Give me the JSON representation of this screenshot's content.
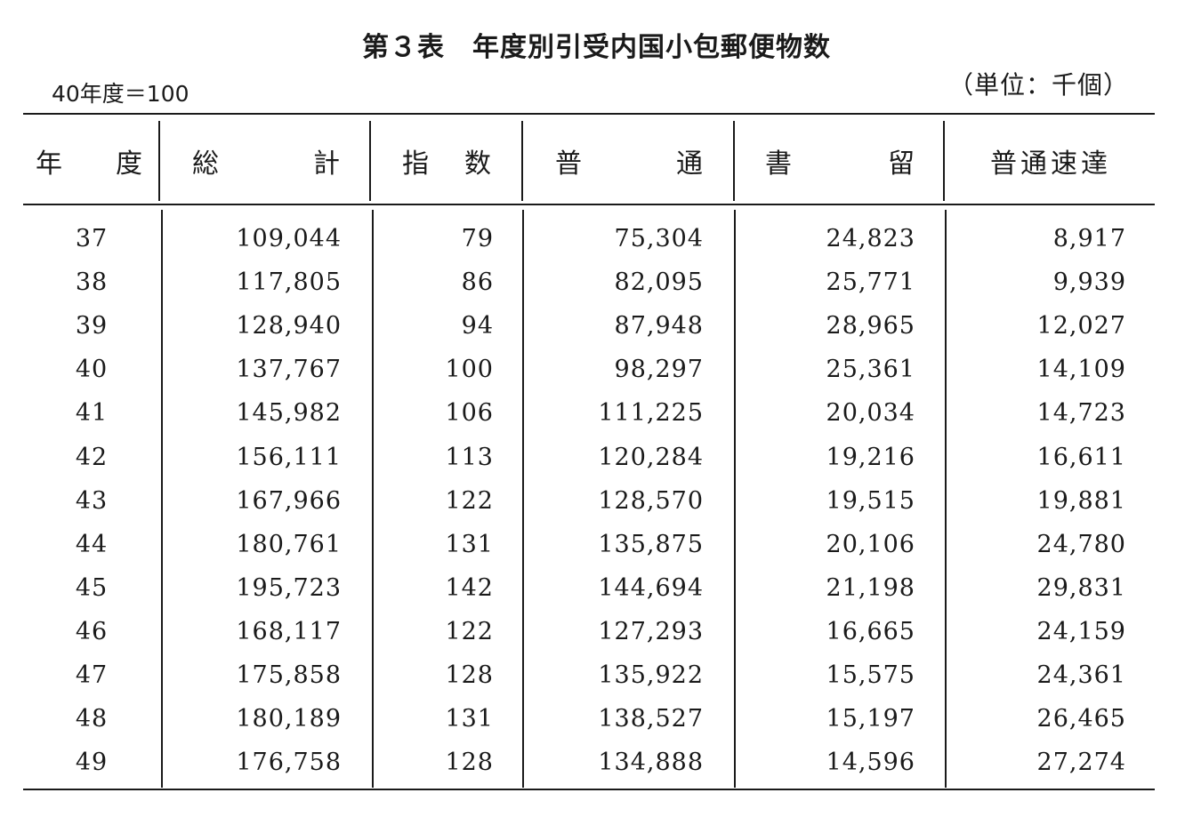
{
  "title": "第３表　年度別引受内国小包郵便物数",
  "base_note": "40年度＝100",
  "unit_note": "（単位：千個）",
  "headers": {
    "year": [
      "年",
      "度"
    ],
    "total": [
      "総",
      "計"
    ],
    "index": [
      "指",
      "数"
    ],
    "ordinary": [
      "普",
      "通"
    ],
    "registered": [
      "書",
      "留"
    ],
    "express": "普通速達"
  },
  "rows": [
    {
      "year": "37",
      "total": "109,044",
      "index": "79",
      "ordinary": "75,304",
      "registered": "24,823",
      "express": "8,917"
    },
    {
      "year": "38",
      "total": "117,805",
      "index": "86",
      "ordinary": "82,095",
      "registered": "25,771",
      "express": "9,939"
    },
    {
      "year": "39",
      "total": "128,940",
      "index": "94",
      "ordinary": "87,948",
      "registered": "28,965",
      "express": "12,027"
    },
    {
      "year": "40",
      "total": "137,767",
      "index": "100",
      "ordinary": "98,297",
      "registered": "25,361",
      "express": "14,109"
    },
    {
      "year": "41",
      "total": "145,982",
      "index": "106",
      "ordinary": "111,225",
      "registered": "20,034",
      "express": "14,723"
    },
    {
      "year": "42",
      "total": "156,111",
      "index": "113",
      "ordinary": "120,284",
      "registered": "19,216",
      "express": "16,611"
    },
    {
      "year": "43",
      "total": "167,966",
      "index": "122",
      "ordinary": "128,570",
      "registered": "19,515",
      "express": "19,881"
    },
    {
      "year": "44",
      "total": "180,761",
      "index": "131",
      "ordinary": "135,875",
      "registered": "20,106",
      "express": "24,780"
    },
    {
      "year": "45",
      "total": "195,723",
      "index": "142",
      "ordinary": "144,694",
      "registered": "21,198",
      "express": "29,831"
    },
    {
      "year": "46",
      "total": "168,117",
      "index": "122",
      "ordinary": "127,293",
      "registered": "16,665",
      "express": "24,159"
    },
    {
      "year": "47",
      "total": "175,858",
      "index": "128",
      "ordinary": "135,922",
      "registered": "15,575",
      "express": "24,361"
    },
    {
      "year": "48",
      "total": "180,189",
      "index": "131",
      "ordinary": "138,527",
      "registered": "15,197",
      "express": "26,465"
    },
    {
      "year": "49",
      "total": "176,758",
      "index": "128",
      "ordinary": "134,888",
      "registered": "14,596",
      "express": "27,274"
    }
  ]
}
